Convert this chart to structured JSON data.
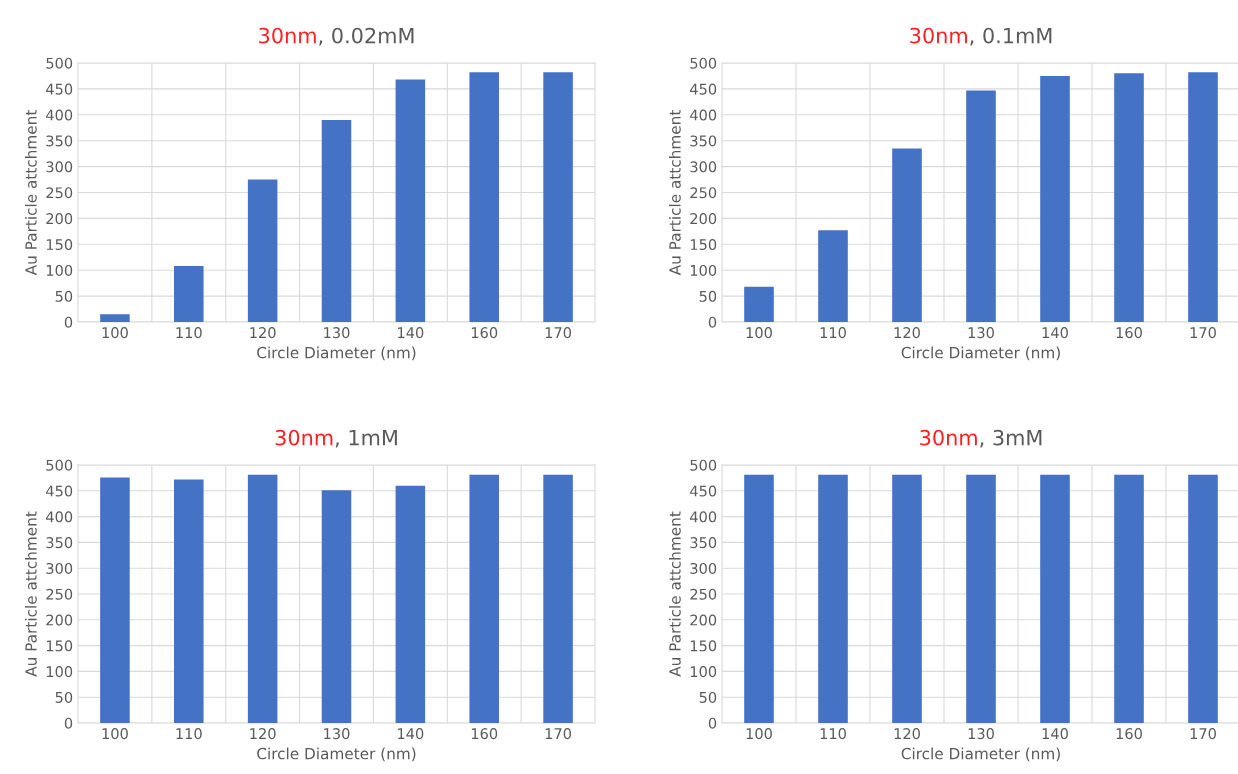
{
  "chart_data": [
    {
      "type": "bar",
      "title": "30nm, 0.02mM",
      "xlabel": "Circle Diameter (nm)",
      "ylabel": "Au Particle attchment",
      "categories": [
        "100",
        "110",
        "120",
        "130",
        "140",
        "160",
        "170"
      ],
      "color": "#4472c4",
      "values": [
        15,
        108,
        275,
        390,
        468,
        482,
        482
      ],
      "ylim": [
        0,
        500
      ],
      "yticks": [
        0,
        50,
        100,
        150,
        200,
        250,
        300,
        350,
        400,
        450,
        500
      ],
      "grid": true
    },
    {
      "type": "bar",
      "title": "30nm, 0.1mM",
      "xlabel": "Circle Diameter (nm)",
      "ylabel": "Au Particle attchment",
      "categories": [
        "100",
        "110",
        "120",
        "130",
        "140",
        "160",
        "170"
      ],
      "color": "#4472c4",
      "values": [
        68,
        177,
        335,
        447,
        475,
        480,
        482
      ],
      "ylim": [
        0,
        500
      ],
      "yticks": [
        0,
        50,
        100,
        150,
        200,
        250,
        300,
        350,
        400,
        450,
        500
      ],
      "grid": true
    },
    {
      "type": "bar",
      "title": "30nm, 1mM",
      "xlabel": "Circle Diameter (nm)",
      "ylabel": "Au Particle attchment",
      "categories": [
        "100",
        "110",
        "120",
        "130",
        "140",
        "160",
        "170"
      ],
      "color": "#4472c4",
      "values": [
        476,
        472,
        481,
        451,
        460,
        481,
        481
      ],
      "ylim": [
        0,
        500
      ],
      "yticks": [
        0,
        50,
        100,
        150,
        200,
        250,
        300,
        350,
        400,
        450,
        500
      ],
      "grid": true
    },
    {
      "type": "bar",
      "title": "30nm, 3mM",
      "xlabel": "Circle Diameter (nm)",
      "ylabel": "Au Particle attchment",
      "categories": [
        "100",
        "110",
        "120",
        "130",
        "140",
        "160",
        "170"
      ],
      "color": "#4472c4",
      "values": [
        481,
        481,
        481,
        481,
        481,
        481,
        481
      ],
      "ylim": [
        0,
        500
      ],
      "yticks": [
        0,
        50,
        100,
        150,
        200,
        250,
        300,
        350,
        400,
        450,
        500
      ],
      "grid": true
    }
  ]
}
